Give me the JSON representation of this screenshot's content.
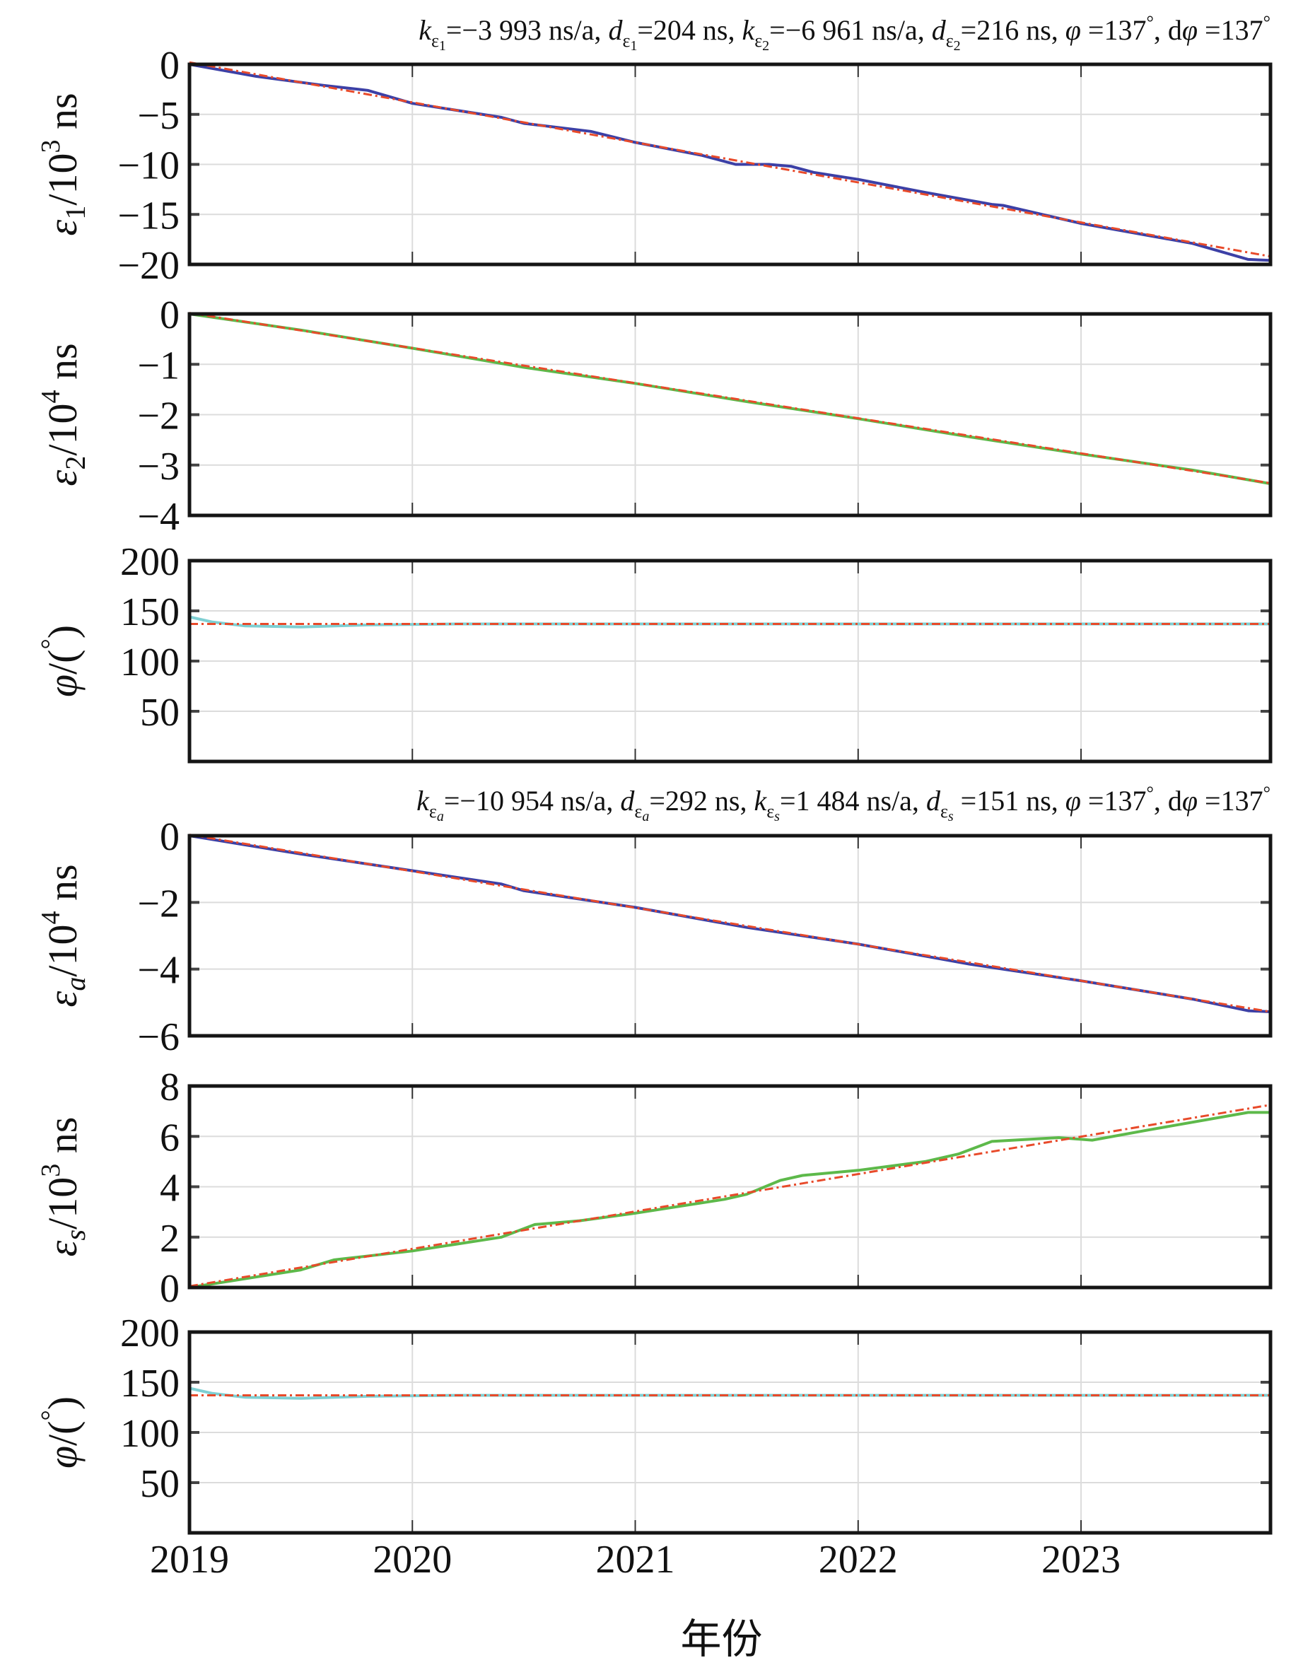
{
  "chart_data": {
    "type": "line",
    "xlabel": "年份",
    "x_ticks": [
      "2019",
      "2020",
      "2021",
      "2022",
      "2023"
    ],
    "xlim": [
      2019,
      2023.85
    ],
    "colors": {
      "blue": "#3c40a6",
      "green": "#5db94a",
      "cyan": "#7fcfd2",
      "fit": "#e84a2a",
      "grid": "#dcdcdc",
      "frame": "#151515"
    },
    "titles": [
      {
        "parts": [
          "k",
          "ε",
          "1",
          "=−3 993 ns/a, ",
          "d",
          "ε",
          "1",
          "=204 ns, ",
          "k",
          "ε",
          "2",
          "=−6 961 ns/a, ",
          "d",
          "ε",
          "2",
          "=216 ns, ",
          "φ",
          " =137",
          "°",
          ", d",
          "φ",
          " =137",
          "°"
        ]
      },
      {
        "parts": [
          "k",
          "ε",
          "a",
          "=−10 954 ns/a, ",
          "d",
          "ε",
          "a",
          "=292 ns, ",
          "k",
          "ε",
          "s",
          "=1 484 ns/a, ",
          "d",
          "ε",
          "s",
          " =151 ns, ",
          "φ",
          " =137",
          "°",
          ", d",
          "φ",
          " =137",
          "°"
        ]
      }
    ],
    "panels": [
      {
        "ylabel": {
          "sym": "ε",
          "sub": "1",
          "unit": "/10",
          "exp": "3",
          "tail": " ns"
        },
        "ylim": [
          -20,
          0
        ],
        "y_ticks": [
          0,
          -5,
          -10,
          -15,
          -20
        ],
        "y_tick_labels": [
          "0",
          "−5",
          "−10",
          "−15",
          "−20"
        ],
        "series": [
          {
            "name": "ε1",
            "color": "blue",
            "style": "solid",
            "x": [
              2019,
              2019.3,
              2019.6,
              2019.8,
              2020.0,
              2020.4,
              2020.5,
              2020.8,
              2021.0,
              2021.3,
              2021.45,
              2021.6,
              2021.7,
              2021.8,
              2022.0,
              2022.3,
              2022.6,
              2022.65,
              2023.0,
              2023.5,
              2023.75,
              2023.85
            ],
            "y": [
              0,
              -1.2,
              -2.1,
              -2.6,
              -3.9,
              -5.3,
              -5.9,
              -6.7,
              -7.8,
              -9.1,
              -10.0,
              -10.0,
              -10.2,
              -10.8,
              -11.5,
              -12.8,
              -14.0,
              -14.1,
              -15.9,
              -17.9,
              -19.5,
              -19.6
            ]
          },
          {
            "name": "fit",
            "color": "fit",
            "style": "dashdot",
            "x": [
              2019,
              2023.85
            ],
            "y": [
              0.2,
              -19.2
            ]
          }
        ]
      },
      {
        "ylabel": {
          "sym": "ε",
          "sub": "2",
          "unit": "/10",
          "exp": "4",
          "tail": " ns"
        },
        "ylim": [
          -4,
          0
        ],
        "y_ticks": [
          0,
          -1,
          -2,
          -3,
          -4
        ],
        "y_tick_labels": [
          "0",
          "−1",
          "−2",
          "−3",
          "−4"
        ],
        "series": [
          {
            "name": "ε2",
            "color": "green",
            "style": "solid",
            "x": [
              2019,
              2019.5,
              2020.0,
              2020.5,
              2021.0,
              2021.5,
              2022.0,
              2022.5,
              2023.0,
              2023.5,
              2023.85
            ],
            "y": [
              0,
              -0.32,
              -0.68,
              -1.06,
              -1.38,
              -1.74,
              -2.08,
              -2.44,
              -2.78,
              -3.1,
              -3.37
            ]
          },
          {
            "name": "fit",
            "color": "fit",
            "style": "dashdot",
            "x": [
              2019,
              2023.85
            ],
            "y": [
              0.02,
              -3.36
            ]
          }
        ]
      },
      {
        "ylabel": {
          "sym": "φ",
          "sub": "",
          "unit": "/(",
          "exp": "°",
          "tail": ")"
        },
        "ylim": [
          0,
          200
        ],
        "y_ticks": [
          200,
          150,
          100,
          50
        ],
        "y_tick_labels": [
          "200",
          "150",
          "100",
          "50"
        ],
        "series": [
          {
            "name": "φ",
            "color": "cyan",
            "style": "solid",
            "x": [
              2019,
              2019.1,
              2019.25,
              2019.5,
              2019.8,
              2020.2,
              2021.0,
              2023.85
            ],
            "y": [
              144,
              139,
              135,
              134,
              136,
              137,
              137,
              137
            ]
          },
          {
            "name": "fit",
            "color": "fit",
            "style": "dashdot",
            "x": [
              2019,
              2023.85
            ],
            "y": [
              137,
              137
            ]
          }
        ]
      },
      {
        "ylabel": {
          "sym": "ε",
          "sub": "a",
          "unit": "/10",
          "exp": "4",
          "tail": " ns"
        },
        "ylim": [
          -6,
          0
        ],
        "y_ticks": [
          0,
          -2,
          -4,
          -6
        ],
        "y_tick_labels": [
          "0",
          "−2",
          "−4",
          "−6"
        ],
        "series": [
          {
            "name": "εa",
            "color": "blue",
            "style": "solid",
            "x": [
              2019,
              2019.5,
              2020.0,
              2020.4,
              2020.5,
              2021.0,
              2021.5,
              2022.0,
              2022.5,
              2023.0,
              2023.5,
              2023.75,
              2023.85
            ],
            "y": [
              0,
              -0.55,
              -1.05,
              -1.45,
              -1.65,
              -2.15,
              -2.75,
              -3.25,
              -3.85,
              -4.35,
              -4.9,
              -5.25,
              -5.28
            ]
          },
          {
            "name": "fit",
            "color": "fit",
            "style": "dashdot",
            "x": [
              2019,
              2023.85
            ],
            "y": [
              0.03,
              -5.28
            ]
          }
        ]
      },
      {
        "ylabel": {
          "sym": "ε",
          "sub": "s",
          "unit": "/10",
          "exp": "3",
          "tail": " ns"
        },
        "ylim": [
          0,
          8
        ],
        "y_ticks": [
          8,
          6,
          4,
          2,
          0
        ],
        "y_tick_labels": [
          "8",
          "6",
          "4",
          "2",
          "0"
        ],
        "series": [
          {
            "name": "εs",
            "color": "green",
            "style": "solid",
            "x": [
              2019,
              2019.5,
              2019.65,
              2020.0,
              2020.4,
              2020.55,
              2020.75,
              2021.0,
              2021.4,
              2021.5,
              2021.65,
              2021.75,
              2022.0,
              2022.3,
              2022.45,
              2022.6,
              2022.9,
              2023.05,
              2023.3,
              2023.75,
              2023.85
            ],
            "y": [
              0,
              0.7,
              1.1,
              1.45,
              2.0,
              2.5,
              2.65,
              2.95,
              3.5,
              3.7,
              4.25,
              4.45,
              4.65,
              5.0,
              5.3,
              5.8,
              5.95,
              5.85,
              6.25,
              6.95,
              6.95
            ]
          },
          {
            "name": "fit",
            "color": "fit",
            "style": "dashdot",
            "x": [
              2019,
              2023.85
            ],
            "y": [
              0.05,
              7.25
            ]
          }
        ]
      },
      {
        "ylabel": {
          "sym": "φ",
          "sub": "",
          "unit": "/(",
          "exp": "°",
          "tail": ")"
        },
        "ylim": [
          0,
          200
        ],
        "y_ticks": [
          200,
          150,
          100,
          50
        ],
        "y_tick_labels": [
          "200",
          "150",
          "100",
          "50"
        ],
        "series": [
          {
            "name": "φ",
            "color": "cyan",
            "style": "solid",
            "x": [
              2019,
              2019.1,
              2019.25,
              2019.5,
              2019.8,
              2020.2,
              2021.0,
              2023.85
            ],
            "y": [
              144,
              139,
              135,
              134,
              136,
              137,
              137,
              137
            ]
          },
          {
            "name": "fit",
            "color": "fit",
            "style": "dashdot",
            "x": [
              2019,
              2023.85
            ],
            "y": [
              137,
              137
            ]
          }
        ]
      }
    ]
  }
}
